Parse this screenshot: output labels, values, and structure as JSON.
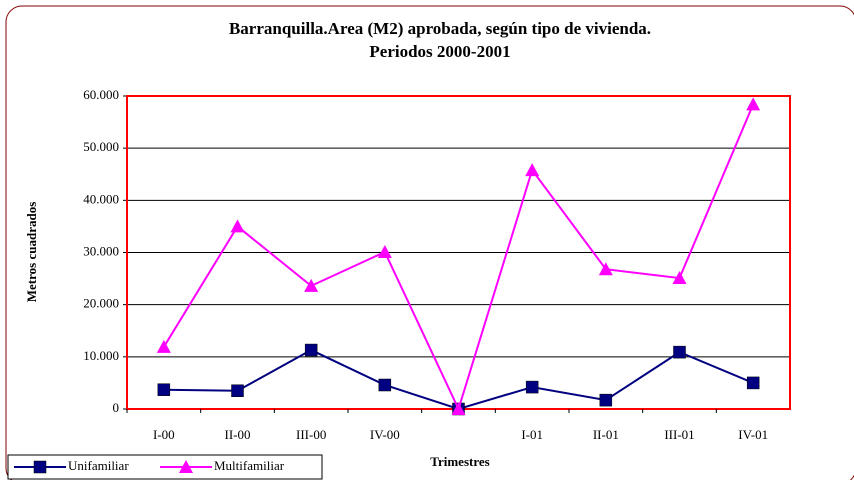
{
  "chart_data": {
    "type": "line",
    "title": "Barranquilla.Area (M2) aprobada, según tipo de vivienda.",
    "subtitle": "Periodos 2000-2001",
    "x_label": "Trimestres",
    "y_label": "Metros cuadrados",
    "categories": [
      "I-00",
      "II-00",
      "III-00",
      "IV-00",
      null,
      "I-01",
      "II-01",
      "III-01",
      "IV-01"
    ],
    "series": [
      {
        "name": "Unifamiliar",
        "color": "#000080",
        "marker": "square",
        "values": [
          3700,
          3500,
          11300,
          4600,
          0,
          4200,
          1700,
          10900,
          5000
        ]
      },
      {
        "name": "Multifamiliar",
        "color": "#ff00ff",
        "marker": "triangle",
        "values": [
          11900,
          35000,
          23600,
          30100,
          0,
          45800,
          26800,
          25100,
          58400
        ]
      }
    ],
    "ylim": [
      0,
      60000
    ],
    "yticks": [
      0,
      {
        "value": 10000,
        "label": "10.000"
      },
      {
        "value": 20000,
        "label": "20.000"
      },
      {
        "value": 30000,
        "label": "30.000"
      },
      {
        "value": 40000,
        "label": "40.000"
      },
      {
        "value": 50000,
        "label": "50.000"
      },
      {
        "value": 60000,
        "label": "60.000"
      }
    ],
    "grid": true,
    "legend": "bottom-left"
  }
}
